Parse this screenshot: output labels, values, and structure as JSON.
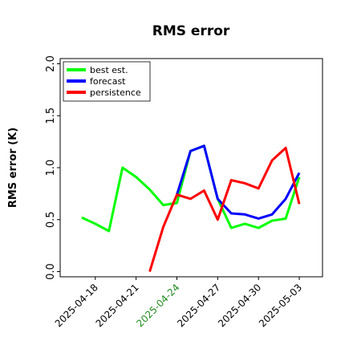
{
  "chart_data": {
    "type": "line",
    "title": "RMS error",
    "ylabel": "RMS error (K)",
    "xlim": [
      "2025-04-15T10:00",
      "2025-05-04T17:00"
    ],
    "xticks": [
      "2025-04-18",
      "2025-04-21",
      "2025-04-24",
      "2025-04-27",
      "2025-04-30",
      "2025-05-03"
    ],
    "highlight_tick": "2025-04-24",
    "highlight_color": "#228b22",
    "ylim": [
      -0.05,
      2.05
    ],
    "yticks": [
      {
        "value": 0,
        "label": "0.0"
      },
      {
        "value": 0.5,
        "label": "0.5"
      },
      {
        "value": 1,
        "label": "1.0"
      },
      {
        "value": 1.5,
        "label": "1.5"
      },
      {
        "value": 2,
        "label": "2.0"
      }
    ],
    "legend": "upper left",
    "series": [
      {
        "name": "best est.",
        "color": "#00ff00",
        "x": [
          "2025-04-17",
          "2025-04-18",
          "2025-04-19",
          "2025-04-20",
          "2025-04-21",
          "2025-04-22",
          "2025-04-23",
          "2025-04-24",
          "2025-04-25",
          "2025-04-26",
          "2025-04-27",
          "2025-04-28",
          "2025-04-29",
          "2025-04-30",
          "2025-05-01",
          "2025-05-02",
          "2025-05-03"
        ],
        "values": [
          0.52,
          0.46,
          0.39,
          1.0,
          0.91,
          0.79,
          0.64,
          0.66,
          1.16,
          1.21,
          0.7,
          0.42,
          0.46,
          0.42,
          0.49,
          0.51,
          0.91
        ]
      },
      {
        "name": "forecast",
        "color": "#0000ff",
        "x": [
          "2025-04-24",
          "2025-04-25",
          "2025-04-26",
          "2025-04-27",
          "2025-04-28",
          "2025-04-29",
          "2025-04-30",
          "2025-05-01",
          "2025-05-02",
          "2025-05-03"
        ],
        "values": [
          0.74,
          1.16,
          1.21,
          0.7,
          0.56,
          0.55,
          0.51,
          0.55,
          0.7,
          0.95
        ]
      },
      {
        "name": "persistence",
        "color": "#ff0000",
        "x": [
          "2025-04-22",
          "2025-04-23",
          "2025-04-24",
          "2025-04-25",
          "2025-04-26",
          "2025-04-27",
          "2025-04-28",
          "2025-04-29",
          "2025-04-30",
          "2025-05-01",
          "2025-05-02",
          "2025-05-03"
        ],
        "values": [
          0.0,
          0.43,
          0.74,
          0.7,
          0.78,
          0.5,
          0.88,
          0.85,
          0.8,
          1.07,
          1.19,
          0.65
        ]
      }
    ]
  }
}
